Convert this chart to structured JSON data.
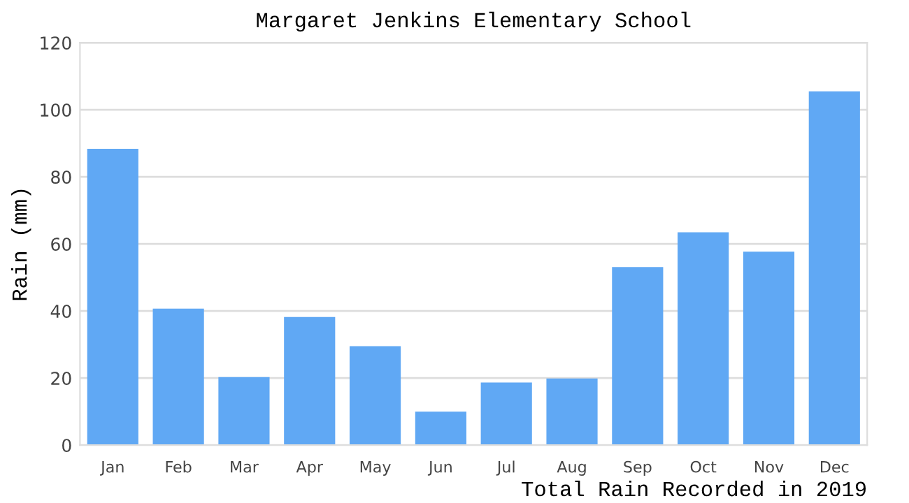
{
  "chart_data": {
    "type": "bar",
    "title": "Margaret Jenkins Elementary School",
    "ylabel": "Rain (mm)",
    "categories": [
      "Jan",
      "Feb",
      "Mar",
      "Apr",
      "May",
      "Jun",
      "Jul",
      "Aug",
      "Sep",
      "Oct",
      "Nov",
      "Dec"
    ],
    "values": [
      88.4,
      40.7,
      20.3,
      38.2,
      29.5,
      10.0,
      18.7,
      19.9,
      53.1,
      63.5,
      57.7,
      105.5
    ],
    "color": "#60a8f4",
    "ylim": [
      0,
      120
    ],
    "yticks": [
      0,
      20,
      40,
      60,
      80,
      100,
      120
    ],
    "grid": "y",
    "annotations": [
      "Total Rain Recorded in 2019"
    ]
  }
}
